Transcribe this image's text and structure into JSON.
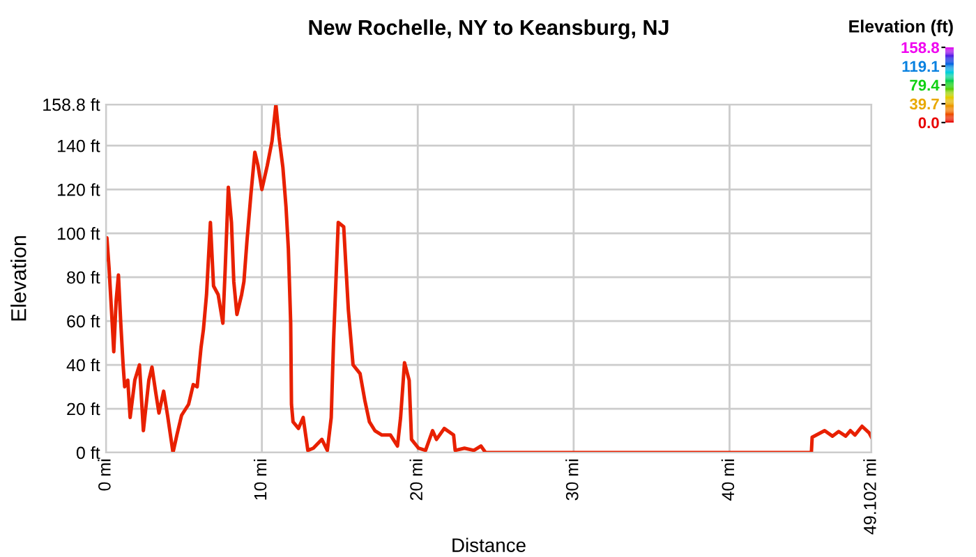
{
  "chart_data": {
    "type": "line",
    "title": "New Rochelle, NY to Keansburg, NJ",
    "xlabel": "Distance",
    "ylabel": "Elevation",
    "clabel": "Elevation (ft)",
    "x": [
      0,
      0.06,
      0.2,
      0.4,
      0.5,
      0.65,
      0.8,
      0.95,
      1.1,
      1.2,
      1.4,
      1.55,
      1.85,
      2.15,
      2.4,
      2.75,
      2.95,
      3.2,
      3.4,
      3.7,
      3.95,
      4.3,
      4.55,
      4.85,
      5.3,
      5.6,
      5.85,
      6.1,
      6.25,
      6.45,
      6.7,
      6.9,
      7.2,
      7.5,
      7.65,
      7.85,
      8.05,
      8.2,
      8.4,
      8.7,
      8.85,
      9.05,
      9.3,
      9.55,
      9.75,
      10.0,
      10.35,
      10.65,
      10.9,
      11.1,
      11.35,
      11.55,
      11.7,
      11.85,
      11.9,
      12.0,
      12.35,
      12.65,
      12.95,
      13.3,
      13.85,
      14.2,
      14.45,
      14.6,
      14.9,
      15.25,
      15.55,
      15.85,
      16.3,
      16.6,
      16.9,
      17.25,
      17.7,
      18.25,
      18.7,
      18.9,
      19.15,
      19.45,
      19.6,
      20.05,
      20.5,
      20.95,
      21.2,
      21.7,
      22.3,
      22.4,
      23.0,
      23.6,
      24.05,
      24.35,
      45.25,
      45.3,
      46.1,
      46.6,
      47.0,
      47.45,
      47.75,
      48.05,
      48.5,
      48.95,
      49.102
    ],
    "series": [
      {
        "color": "#e82000",
        "values": [
          88,
          98,
          84,
          59,
          46,
          69,
          81,
          59,
          40,
          30,
          33,
          16,
          33,
          40,
          10,
          33,
          39,
          27,
          18,
          28,
          17,
          0,
          8,
          17,
          22,
          31,
          30,
          48,
          56,
          72,
          105,
          76,
          72,
          59,
          84,
          121,
          105,
          78,
          63,
          72,
          78,
          97,
          118,
          137,
          131,
          120,
          131,
          142,
          158.8,
          144,
          130,
          112,
          93,
          59,
          22,
          14,
          11,
          16,
          1,
          2,
          6,
          1,
          16,
          51,
          105,
          103,
          65,
          40,
          36,
          24,
          14,
          10,
          8,
          8,
          3,
          16,
          41,
          33,
          6,
          2,
          1,
          10,
          6,
          11,
          8,
          1,
          2,
          1,
          3,
          0,
          0,
          7,
          10,
          7.5,
          9.6,
          7.5,
          10,
          8,
          12,
          9,
          7
        ]
      }
    ],
    "xlim": [
      0,
      49.102
    ],
    "xticks": [
      {
        "value": 0,
        "label": "0 mi"
      },
      {
        "value": 10,
        "label": "10 mi"
      },
      {
        "value": 20,
        "label": "20 mi"
      },
      {
        "value": 30,
        "label": "30 mi"
      },
      {
        "value": 40,
        "label": "40 mi"
      },
      {
        "value": 49.102,
        "label": "49.102 mi"
      }
    ],
    "ylim": [
      0,
      158.8
    ],
    "yticks": [
      {
        "value": 0,
        "label": "0 ft"
      },
      {
        "value": 20,
        "label": "20 ft"
      },
      {
        "value": 40,
        "label": "40 ft"
      },
      {
        "value": 60,
        "label": "60 ft"
      },
      {
        "value": 80,
        "label": "80 ft"
      },
      {
        "value": 100,
        "label": "100 ft"
      },
      {
        "value": 120,
        "label": "120 ft"
      },
      {
        "value": 140,
        "label": "140 ft"
      },
      {
        "value": 158.8,
        "label": "158.8 ft"
      }
    ],
    "clim": [
      0,
      158.8
    ],
    "cticks": [
      {
        "value": 158.8,
        "label": "158.8"
      },
      {
        "value": 119.1,
        "label": "119.1"
      },
      {
        "value": 79.4,
        "label": "79.4"
      },
      {
        "value": 39.7,
        "label": "39.7"
      },
      {
        "value": 0,
        "label": "0.0"
      }
    ],
    "grid": true,
    "legend": false
  }
}
